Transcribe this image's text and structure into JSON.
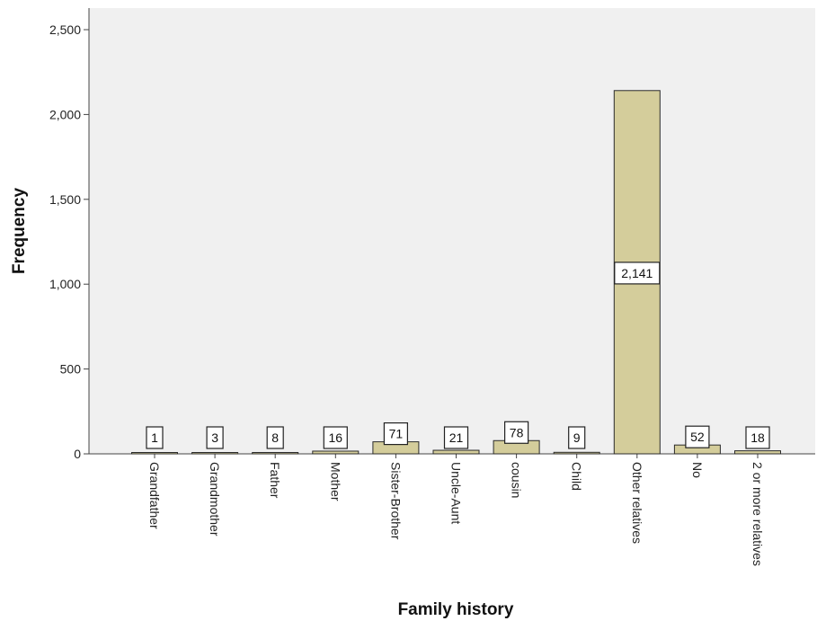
{
  "chart_data": {
    "type": "bar",
    "title": "",
    "xlabel": "Family history",
    "ylabel": "Frequency",
    "categories": [
      "Grandfather",
      "Grandmother",
      "Father",
      "Mother",
      "Sister-Brother",
      "Uncle-Aunt",
      "cousin",
      "Child",
      "Other relatives",
      "No",
      "2 or more relatives"
    ],
    "values": [
      1,
      3,
      8,
      16,
      71,
      21,
      78,
      9,
      2141,
      52,
      18
    ],
    "data_labels": [
      "1",
      "3",
      "8",
      "16",
      "71",
      "21",
      "78",
      "9",
      "2,141",
      "52",
      "18"
    ],
    "ylim": [
      0,
      2500
    ],
    "yticks": [
      0,
      500,
      1000,
      1500,
      2000,
      2500
    ],
    "ytick_labels": [
      "0",
      "500",
      "1,000",
      "1,500",
      "2,000",
      "2,500"
    ],
    "grid": false,
    "legend": "none",
    "colors": {
      "bar_fill": "#d4cd9b",
      "bar_stroke": "#2b2b2b",
      "plot_background": "#f0f0f0",
      "axis": "#444444",
      "label_box_fill": "#ffffff",
      "label_box_stroke": "#222222"
    }
  }
}
